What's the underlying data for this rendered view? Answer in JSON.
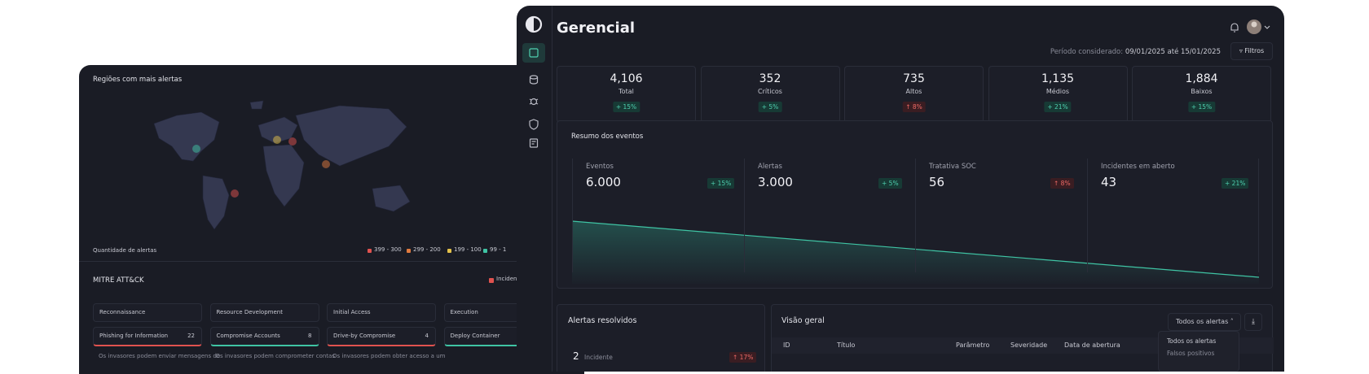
{
  "back": {
    "map_title": "Regiões com mais alertas",
    "legend_title": "Quantidade de alertas",
    "legend": [
      {
        "label": "399 - 300",
        "color": "#e0524f"
      },
      {
        "label": "299 - 200",
        "color": "#e07a3f"
      },
      {
        "label": "199 - 100",
        "color": "#e3c14a"
      },
      {
        "label": "99 - 1",
        "color": "#3fc4a4"
      }
    ],
    "mitre_title": "MITRE ATT&CK",
    "mitre_legend": "Incidentes",
    "columns": [
      {
        "name": "Reconnaissance",
        "technique": "Phishing for Information",
        "count": 22,
        "color": "#e0524f",
        "description": "Os invasores podem enviar mensagens de"
      },
      {
        "name": "Resource Development",
        "technique": "Compromise Accounts",
        "count": 8,
        "color": "#3fc4a4",
        "description": "Os invasores podem comprometer contas"
      },
      {
        "name": "Initial Access",
        "technique": "Drive-by Compromise",
        "count": 4,
        "color": "#e0524f",
        "description": "Os invasores podem obter acesso a um"
      },
      {
        "name": "Execution",
        "technique": "Deploy Container",
        "color": "#3fc4a4"
      }
    ]
  },
  "front": {
    "title": "Gerencial",
    "period_label": "Período considerado:",
    "period": "09/01/2025 até 15/01/2025",
    "filter": "Filtros",
    "kpis": [
      {
        "value": "4,106",
        "label": "Total",
        "change": "+ 15%",
        "color": "#e8e8ee"
      },
      {
        "value": "352",
        "label": "Críticos",
        "change": "+ 5%",
        "color": "#e0524f"
      },
      {
        "value": "735",
        "label": "Altos",
        "change": "↑ 8%",
        "color": "#e07a3f"
      },
      {
        "value": "1,135",
        "label": "Médios",
        "change": "+ 21%",
        "color": "#e3c14a"
      },
      {
        "value": "1,884",
        "label": "Baixos",
        "change": "+ 15%",
        "color": "#3fc4a4"
      }
    ],
    "summary": {
      "title": "Resumo dos eventos",
      "metrics": [
        {
          "label": "Eventos",
          "value": "6.000",
          "change": "+ 15%"
        },
        {
          "label": "Alertas",
          "value": "3.000",
          "change": "+ 5%"
        },
        {
          "label": "Tratativa SOC",
          "value": "56",
          "change": "↑ 8%"
        },
        {
          "label": "Incidentes em aberto",
          "value": "43",
          "change": "+ 21%"
        }
      ]
    },
    "resolved": {
      "title": "Alertas resolvidos",
      "count": "2",
      "label": "Incidente",
      "change": "↑ 17%"
    },
    "overview": {
      "title": "Visão geral",
      "dropdown": "Todos os alertas",
      "columns": [
        "ID",
        "Título",
        "Parâmetro",
        "Severidade",
        "Data de abertura"
      ],
      "menu": [
        "Todos os alertas",
        "Falsos positivos"
      ]
    }
  }
}
